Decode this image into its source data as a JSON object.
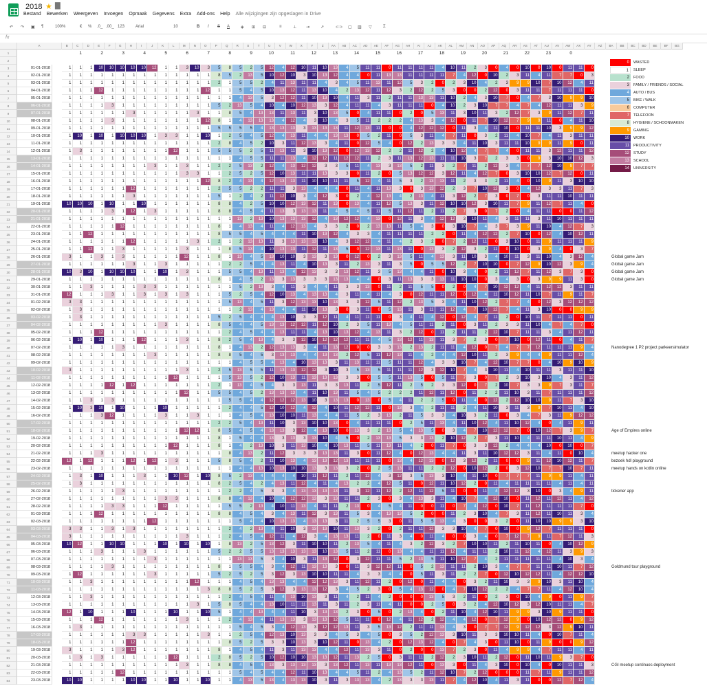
{
  "app": {
    "title": "2018",
    "star_icon": "star-icon",
    "folder_icon": "folder-icon",
    "menu": [
      "Bestand",
      "Bewerken",
      "Weergeven",
      "Invoegen",
      "Opmaak",
      "Gegevens",
      "Extra",
      "Add-ons",
      "Help"
    ],
    "saved_status": "Alle wijzigingen zijn opgeslagen in Drive"
  },
  "toolbar": {
    "zoom": "100%",
    "currency": "€",
    "percent": "%",
    "dec_less": ".0_",
    "dec_more": ".00_",
    "format": "123",
    "font": "Arial",
    "font_size": "10",
    "bold": "B",
    "italic": "I",
    "strike": "S",
    "text_color": "A",
    "sigma": "Σ"
  },
  "formula_bar": {
    "fx": "fx"
  },
  "sheet": {
    "date_col_header": "A",
    "column_letters": [
      "B",
      "C",
      "D",
      "E",
      "F",
      "G",
      "H",
      "I",
      "J",
      "K",
      "L",
      "M",
      "N",
      "O",
      "P",
      "Q",
      "R",
      "S",
      "T",
      "U",
      "V",
      "W",
      "X",
      "Y",
      "Z",
      "AA",
      "AB",
      "AC",
      "AD",
      "AE",
      "AF",
      "AG",
      "AH",
      "AI",
      "AJ",
      "AK",
      "AL",
      "AM",
      "AN",
      "AO",
      "AP",
      "AQ",
      "AR",
      "AS",
      "AT",
      "AU",
      "AV",
      "AW",
      "AX",
      "AY"
    ],
    "extra_column_letters": [
      "AZ",
      "BA",
      "BB",
      "BC",
      "BD",
      "BE",
      "BF",
      "BG"
    ],
    "hour_labels": [
      "1",
      "2",
      "3",
      "4",
      "5",
      "6",
      "7",
      "8",
      "9",
      "10",
      "11",
      "12",
      "13",
      "14",
      "15",
      "16",
      "17",
      "18",
      "19",
      "20",
      "21",
      "22",
      "23",
      "0"
    ],
    "dates": [
      "01-01-2018",
      "02-01-2018",
      "03-01-2018",
      "04-01-2018",
      "05-01-2018",
      "06-01-2018",
      "07-01-2018",
      "08-01-2018",
      "09-01-2018",
      "10-01-2018",
      "11-01-2018",
      "12-01-2018",
      "13-01-2018",
      "14-01-2018",
      "15-01-2018",
      "16-01-2018",
      "17-01-2018",
      "18-01-2018",
      "19-01-2018",
      "20-01-2018",
      "21-01-2018",
      "22-01-2018",
      "23-01-2018",
      "24-01-2018",
      "25-01-2018",
      "26-01-2018",
      "27-01-2018",
      "28-01-2018",
      "29-01-2018",
      "30-01-2018",
      "31-01-2018",
      "01-02-2018",
      "02-02-2018",
      "03-02-2018",
      "04-02-2018",
      "05-02-2018",
      "06-02-2018",
      "07-02-2018",
      "08-02-2018",
      "09-02-2018",
      "10-02-2018",
      "11-02-2018",
      "12-02-2018",
      "13-02-2018",
      "14-02-2018",
      "15-02-2018",
      "16-02-2018",
      "17-02-2018",
      "18-02-2018",
      "19-02-2018",
      "20-02-2018",
      "21-02-2018",
      "22-02-2018",
      "23-02-2018",
      "24-02-2018",
      "25-02-2018",
      "26-02-2018",
      "27-02-2018",
      "28-02-2018",
      "01-03-2018",
      "02-03-2018",
      "03-03-2018",
      "04-03-2018",
      "05-03-2018",
      "06-03-2018",
      "07-03-2018",
      "08-03-2018",
      "09-03-2018",
      "10-03-2018",
      "11-03-2018",
      "12-03-2018",
      "13-03-2018",
      "14-03-2018",
      "15-03-2018",
      "16-03-2018",
      "17-03-2018",
      "18-03-2018",
      "19-03-2018",
      "20-03-2018",
      "21-03-2018",
      "22-03-2018",
      "23-03-2018"
    ],
    "weekend_rows": [
      5,
      6,
      12,
      13,
      19,
      20,
      26,
      27,
      33,
      34,
      40,
      41,
      47,
      48,
      54,
      55,
      61,
      62,
      68,
      69,
      75,
      76
    ],
    "notes": [
      {
        "row": 25,
        "text": "Global game Jam"
      },
      {
        "row": 26,
        "text": "Global game Jam"
      },
      {
        "row": 27,
        "text": "Global game Jam"
      },
      {
        "row": 28,
        "text": "Global game Jam"
      },
      {
        "row": 37,
        "text": "Nanodegree 1 P2 project parkeersimulator"
      },
      {
        "row": 48,
        "text": "Age of Empires online"
      },
      {
        "row": 51,
        "text": "meetup hacker one"
      },
      {
        "row": 52,
        "text": "bezoek hdl playground"
      },
      {
        "row": 53,
        "text": "meetup hands on kotlin online"
      },
      {
        "row": 56,
        "text": "tickener app"
      },
      {
        "row": 66,
        "text": "Goldmund tour playground"
      },
      {
        "row": 79,
        "text": "CGI meetup continues deployment"
      }
    ]
  },
  "legend": [
    {
      "code": "0",
      "label": "WASTED",
      "color": "#ff0000"
    },
    {
      "code": "1",
      "label": "SLEEP",
      "color": "#ffffff"
    },
    {
      "code": "2",
      "label": "FOOD",
      "color": "#b7e1cd"
    },
    {
      "code": "3",
      "label": "FAMILY / FRIENDS / SOCIAL",
      "color": "#ead1dc"
    },
    {
      "code": "4",
      "label": "AUTO / BUS",
      "color": "#6fa8dc"
    },
    {
      "code": "5",
      "label": "BIKE / WALK",
      "color": "#9fc5e8"
    },
    {
      "code": "6",
      "label": "COMPUTER",
      "color": "#f9cb9c"
    },
    {
      "code": "7",
      "label": "TELEFOON",
      "color": "#e06666"
    },
    {
      "code": "8",
      "label": "HYGIENE / SCHOONMAKEN",
      "color": "#d9ead3"
    },
    {
      "code": "9",
      "label": "GAMING",
      "color": "#ff9900"
    },
    {
      "code": "10",
      "label": "WORK",
      "color": "#351c75"
    },
    {
      "code": "11",
      "label": "PRODUCTIVITY",
      "color": "#674ea7"
    },
    {
      "code": "12",
      "label": "STUDY",
      "color": "#a64d79"
    },
    {
      "code": "13",
      "label": "SCHOOL",
      "color": "#c27ba0"
    },
    {
      "code": "14",
      "label": "UNIVERSITY",
      "color": "#741b47"
    }
  ]
}
